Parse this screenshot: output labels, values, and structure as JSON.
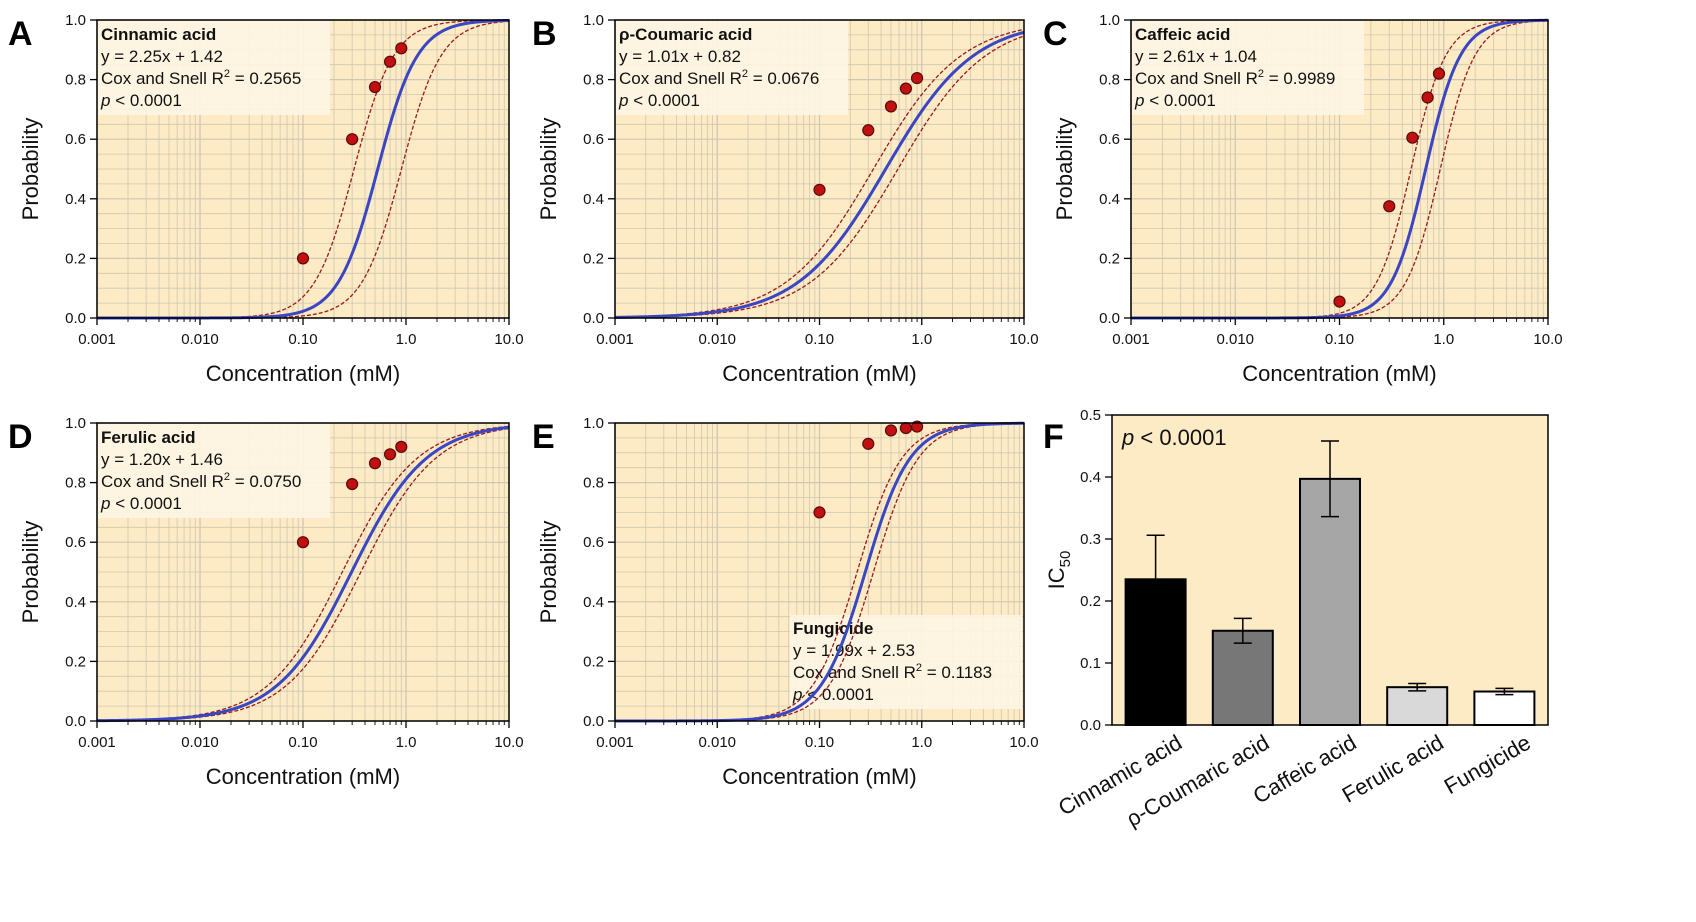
{
  "colors": {
    "plot_background": "#fcebc4",
    "grid": "#cfc7b4",
    "fit_line": "#3b46c2",
    "ci_line": "#9b1a1a",
    "point_fill": "#c01010",
    "point_stroke": "#5a0a0a",
    "annotation_box": "#fdf5e3"
  },
  "chart_data": [
    {
      "panel": "A",
      "type": "line",
      "scale": "log",
      "xlabel": "Concentration (mM)",
      "ylabel": "Probability",
      "xlim": [
        0.001,
        10
      ],
      "ylim": [
        0,
        1
      ],
      "x_ticks": [
        0.001,
        0.01,
        0.1,
        1,
        10
      ],
      "x_tick_labels": [
        "0.001",
        "0.010",
        "0.10",
        "1.0",
        "10.0"
      ],
      "y_ticks": [
        0,
        0.2,
        0.4,
        0.6,
        0.8,
        1.0
      ],
      "y_tick_labels": [
        "0.0",
        "0.2",
        "0.4",
        "0.6",
        "0.8",
        "1.0"
      ],
      "annotation": {
        "position": "top-left",
        "title": "Cinnamic acid",
        "equation": "y = 2.25x + 1.42",
        "r2_label": "Cox and Snell R",
        "r2_sup": "2",
        "r2_value": " = 0.2565",
        "p_var": "p",
        "p_text": " < 0.0001"
      },
      "fit": {
        "slope": 2.25,
        "intercept": 1.42
      },
      "ci_offset_log": 0.23,
      "points": [
        {
          "x": 0.1,
          "y": 0.2
        },
        {
          "x": 0.3,
          "y": 0.6
        },
        {
          "x": 0.5,
          "y": 0.775
        },
        {
          "x": 0.7,
          "y": 0.86
        },
        {
          "x": 0.9,
          "y": 0.905
        }
      ]
    },
    {
      "panel": "B",
      "type": "line",
      "scale": "log",
      "xlabel": "Concentration (mM)",
      "ylabel": "Probability",
      "xlim": [
        0.001,
        10
      ],
      "ylim": [
        0,
        1
      ],
      "x_ticks": [
        0.001,
        0.01,
        0.1,
        1,
        10
      ],
      "x_tick_labels": [
        "0.001",
        "0.010",
        "0.10",
        "1.0",
        "10.0"
      ],
      "y_ticks": [
        0,
        0.2,
        0.4,
        0.6,
        0.8,
        1.0
      ],
      "y_tick_labels": [
        "0.0",
        "0.2",
        "0.4",
        "0.6",
        "0.8",
        "1.0"
      ],
      "annotation": {
        "position": "top-left",
        "title": "ρ-Coumaric acid",
        "equation": "y = 1.01x + 0.82",
        "r2_label": "Cox and Snell R",
        "r2_sup": "2",
        "r2_value": " = 0.0676",
        "p_var": "p",
        "p_text": " < 0.0001"
      },
      "fit": {
        "slope": 1.01,
        "intercept": 0.82
      },
      "ci_offset_log": 0.12,
      "points": [
        {
          "x": 0.1,
          "y": 0.43
        },
        {
          "x": 0.3,
          "y": 0.63
        },
        {
          "x": 0.5,
          "y": 0.71
        },
        {
          "x": 0.7,
          "y": 0.77
        },
        {
          "x": 0.9,
          "y": 0.805
        }
      ]
    },
    {
      "panel": "C",
      "type": "line",
      "scale": "log",
      "xlabel": "Concentration (mM)",
      "ylabel": "Probability",
      "xlim": [
        0.001,
        10
      ],
      "ylim": [
        0,
        1
      ],
      "x_ticks": [
        0.001,
        0.01,
        0.1,
        1,
        10
      ],
      "x_tick_labels": [
        "0.001",
        "0.010",
        "0.10",
        "1.0",
        "10.0"
      ],
      "y_ticks": [
        0,
        0.2,
        0.4,
        0.6,
        0.8,
        1.0
      ],
      "y_tick_labels": [
        "0.0",
        "0.2",
        "0.4",
        "0.6",
        "0.8",
        "1.0"
      ],
      "annotation": {
        "position": "top-left",
        "title": "Caffeic acid",
        "equation": "y = 2.61x + 1.04",
        "r2_label": "Cox and Snell R",
        "r2_sup": "2",
        "r2_value": " = 0.9989",
        "p_var": "p",
        "p_text": " < 0.0001"
      },
      "fit": {
        "slope": 2.61,
        "intercept": 1.04
      },
      "ci_offset_log": 0.14,
      "points": [
        {
          "x": 0.1,
          "y": 0.055
        },
        {
          "x": 0.3,
          "y": 0.375
        },
        {
          "x": 0.5,
          "y": 0.605
        },
        {
          "x": 0.7,
          "y": 0.74
        },
        {
          "x": 0.9,
          "y": 0.82
        }
      ]
    },
    {
      "panel": "D",
      "type": "line",
      "scale": "log",
      "xlabel": "Concentration (mM)",
      "ylabel": "Probability",
      "xlim": [
        0.001,
        10
      ],
      "ylim": [
        0,
        1
      ],
      "x_ticks": [
        0.001,
        0.01,
        0.1,
        1,
        10
      ],
      "x_tick_labels": [
        "0.001",
        "0.010",
        "0.10",
        "1.0",
        "10.0"
      ],
      "y_ticks": [
        0,
        0.2,
        0.4,
        0.6,
        0.8,
        1.0
      ],
      "y_tick_labels": [
        "0.0",
        "0.2",
        "0.4",
        "0.6",
        "0.8",
        "1.0"
      ],
      "annotation": {
        "position": "top-left",
        "title": "Ferulic acid",
        "equation": "y = 1.20x + 1.46",
        "r2_label": "Cox and Snell R",
        "r2_sup": "2",
        "r2_value": " = 0.0750",
        "p_var": "p",
        "p_text": " < 0.0001"
      },
      "fit": {
        "slope": 1.2,
        "intercept": 1.46
      },
      "ci_offset_log": 0.09,
      "points": [
        {
          "x": 0.1,
          "y": 0.6
        },
        {
          "x": 0.3,
          "y": 0.795
        },
        {
          "x": 0.5,
          "y": 0.865
        },
        {
          "x": 0.7,
          "y": 0.895
        },
        {
          "x": 0.9,
          "y": 0.92
        }
      ]
    },
    {
      "panel": "E",
      "type": "line",
      "scale": "log",
      "xlabel": "Concentration (mM)",
      "ylabel": "Probability",
      "xlim": [
        0.001,
        10
      ],
      "ylim": [
        0,
        1
      ],
      "x_ticks": [
        0.001,
        0.01,
        0.1,
        1,
        10
      ],
      "x_tick_labels": [
        "0.001",
        "0.010",
        "0.10",
        "1.0",
        "10.0"
      ],
      "y_ticks": [
        0,
        0.2,
        0.4,
        0.6,
        0.8,
        1.0
      ],
      "y_tick_labels": [
        "0.0",
        "0.2",
        "0.4",
        "0.6",
        "0.8",
        "1.0"
      ],
      "annotation": {
        "position": "bottom-right",
        "title": "Fungicide",
        "equation": "y = 1.99x + 2.53",
        "r2_label": "Cox and Snell R",
        "r2_sup": "2",
        "r2_value": " = 0.1183",
        "p_var": "p",
        "p_text": " < 0.0001"
      },
      "fit": {
        "slope": 1.99,
        "intercept": 2.53
      },
      "ci_offset_log": 0.08,
      "points": [
        {
          "x": 0.1,
          "y": 0.7
        },
        {
          "x": 0.3,
          "y": 0.93
        },
        {
          "x": 0.5,
          "y": 0.975
        },
        {
          "x": 0.7,
          "y": 0.983
        },
        {
          "x": 0.9,
          "y": 0.988
        }
      ]
    },
    {
      "panel": "F",
      "type": "bar",
      "ylabel": "IC",
      "ylabel_sub": "50",
      "ylim": [
        0,
        0.5
      ],
      "y_ticks": [
        0,
        0.1,
        0.2,
        0.3,
        0.4,
        0.5
      ],
      "y_tick_labels": [
        "0.0",
        "0.1",
        "0.2",
        "0.3",
        "0.4",
        "0.5"
      ],
      "annotation": {
        "position": "top-left",
        "p_var": "p",
        "p_text": " < 0.0001"
      },
      "categories": [
        "Cinnamic acid",
        "ρ-Coumaric acid",
        "Caffeic acid",
        "Ferulic acid",
        "Fungicide"
      ],
      "values": [
        0.235,
        0.152,
        0.397,
        0.061,
        0.054
      ],
      "errors": [
        0.071,
        0.02,
        0.061,
        0.006,
        0.005
      ],
      "bar_colors": [
        "#000000",
        "#777777",
        "#a6a6a6",
        "#d9d9d9",
        "#ffffff"
      ]
    }
  ]
}
